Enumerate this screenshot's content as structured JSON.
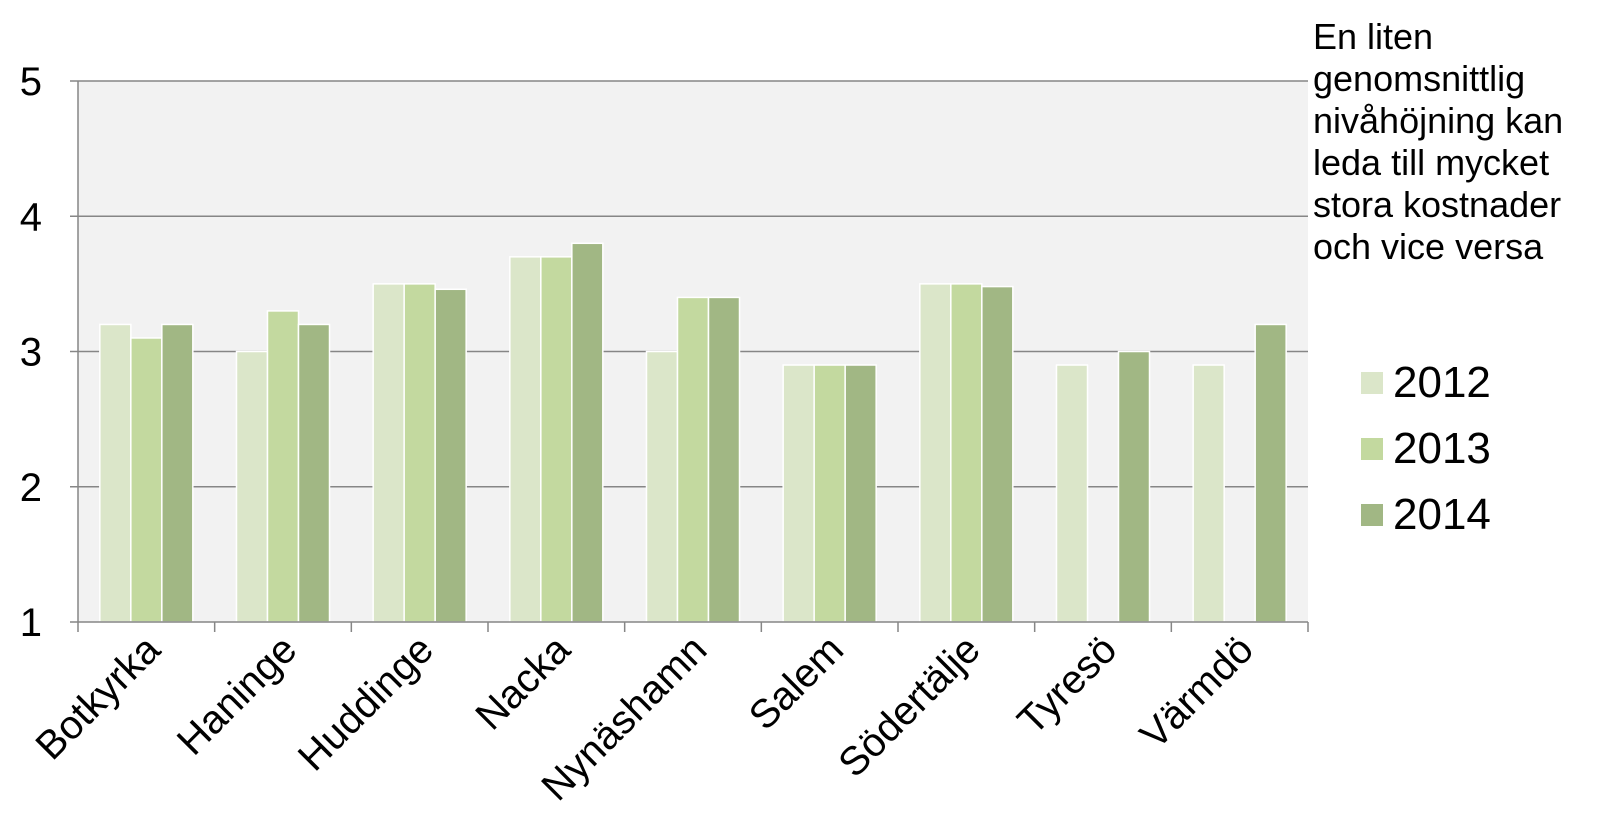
{
  "annotation": "En liten genomsnittlig nivåhöjning kan leda till mycket stora kostnader och vice versa",
  "colors": {
    "plot_background": "#f2f2f2",
    "gridline": "#868686",
    "axis": "#868686"
  },
  "chart_data": {
    "type": "bar",
    "title": "",
    "xlabel": "",
    "ylabel": "",
    "ylim": [
      1,
      5
    ],
    "yticks": [
      "1",
      "2",
      "3",
      "4",
      "5"
    ],
    "grid": true,
    "legend_position": "right",
    "categories": [
      "Botkyrka",
      "Haninge",
      "Huddinge",
      "Nacka",
      "Nynäshamn",
      "Salem",
      "Södertälje",
      "Tyresö",
      "Värmdö"
    ],
    "series": [
      {
        "name": "2012",
        "color": "#dbe6c9",
        "values": [
          3.2,
          3.0,
          3.5,
          3.7,
          3.0,
          2.9,
          3.5,
          2.9,
          2.9
        ]
      },
      {
        "name": "2013",
        "color": "#c3d99f",
        "values": [
          3.1,
          3.3,
          3.5,
          3.7,
          3.4,
          2.9,
          3.5,
          null,
          null
        ]
      },
      {
        "name": "2014",
        "color": "#a1b784",
        "values": [
          3.2,
          3.2,
          3.46,
          3.8,
          3.4,
          2.9,
          3.48,
          3.0,
          3.2
        ]
      }
    ]
  }
}
